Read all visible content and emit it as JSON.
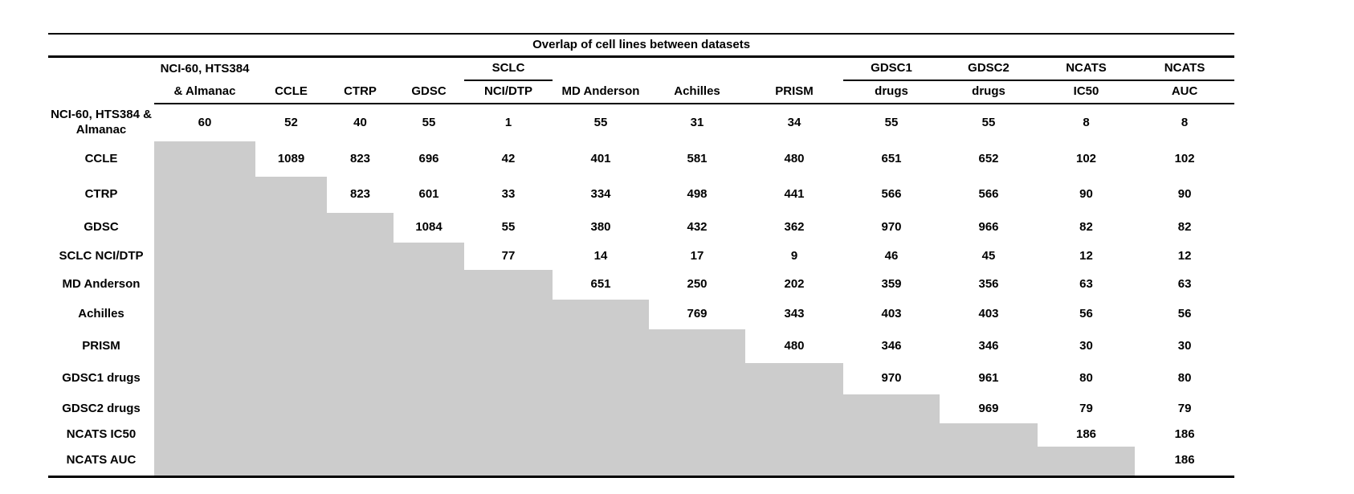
{
  "chart_data": {
    "type": "table",
    "title": "Overlap of cell lines between datasets",
    "header_row_1": [
      "NCI-60, HTS384",
      "",
      "",
      "",
      "SCLC",
      "",
      "",
      "",
      "GDSC1",
      "GDSC2",
      "NCATS",
      "NCATS"
    ],
    "header_row_2": [
      "& Almanac",
      "CCLE",
      "CTRP",
      "GDSC",
      "NCI/DTP",
      "MD Anderson",
      "Achilles",
      "PRISM",
      "drugs",
      "drugs",
      "IC50",
      "AUC"
    ],
    "row_labels": [
      "NCI-60, HTS384 & Almanac",
      "CCLE",
      "CTRP",
      "GDSC",
      "SCLC NCI/DTP",
      "MD Anderson",
      "Achilles",
      "PRISM",
      "GDSC1 drugs",
      "GDSC2 drugs",
      "NCATS IC50",
      "NCATS AUC"
    ],
    "matrix": [
      [
        60,
        52,
        40,
        55,
        1,
        55,
        31,
        34,
        55,
        55,
        8,
        8
      ],
      [
        null,
        1089,
        823,
        696,
        42,
        401,
        581,
        480,
        651,
        652,
        102,
        102
      ],
      [
        null,
        null,
        823,
        601,
        33,
        334,
        498,
        441,
        566,
        566,
        90,
        90
      ],
      [
        null,
        null,
        null,
        1084,
        55,
        380,
        432,
        362,
        970,
        966,
        82,
        82
      ],
      [
        null,
        null,
        null,
        null,
        77,
        14,
        17,
        9,
        46,
        45,
        12,
        12
      ],
      [
        null,
        null,
        null,
        null,
        null,
        651,
        250,
        202,
        359,
        356,
        63,
        63
      ],
      [
        null,
        null,
        null,
        null,
        null,
        null,
        769,
        343,
        403,
        403,
        56,
        56
      ],
      [
        null,
        null,
        null,
        null,
        null,
        null,
        null,
        480,
        346,
        346,
        30,
        30
      ],
      [
        null,
        null,
        null,
        null,
        null,
        null,
        null,
        null,
        970,
        961,
        80,
        80
      ],
      [
        null,
        null,
        null,
        null,
        null,
        null,
        null,
        null,
        null,
        969,
        79,
        79
      ],
      [
        null,
        null,
        null,
        null,
        null,
        null,
        null,
        null,
        null,
        null,
        186,
        186
      ],
      [
        null,
        null,
        null,
        null,
        null,
        null,
        null,
        null,
        null,
        null,
        null,
        186
      ]
    ],
    "masked_cell_color": "#cccccc",
    "border_color": "#000000",
    "layout_hints": {
      "lower_triangle": "masked gray stair-step",
      "diagonal": "dataset self-overlap counts"
    }
  }
}
